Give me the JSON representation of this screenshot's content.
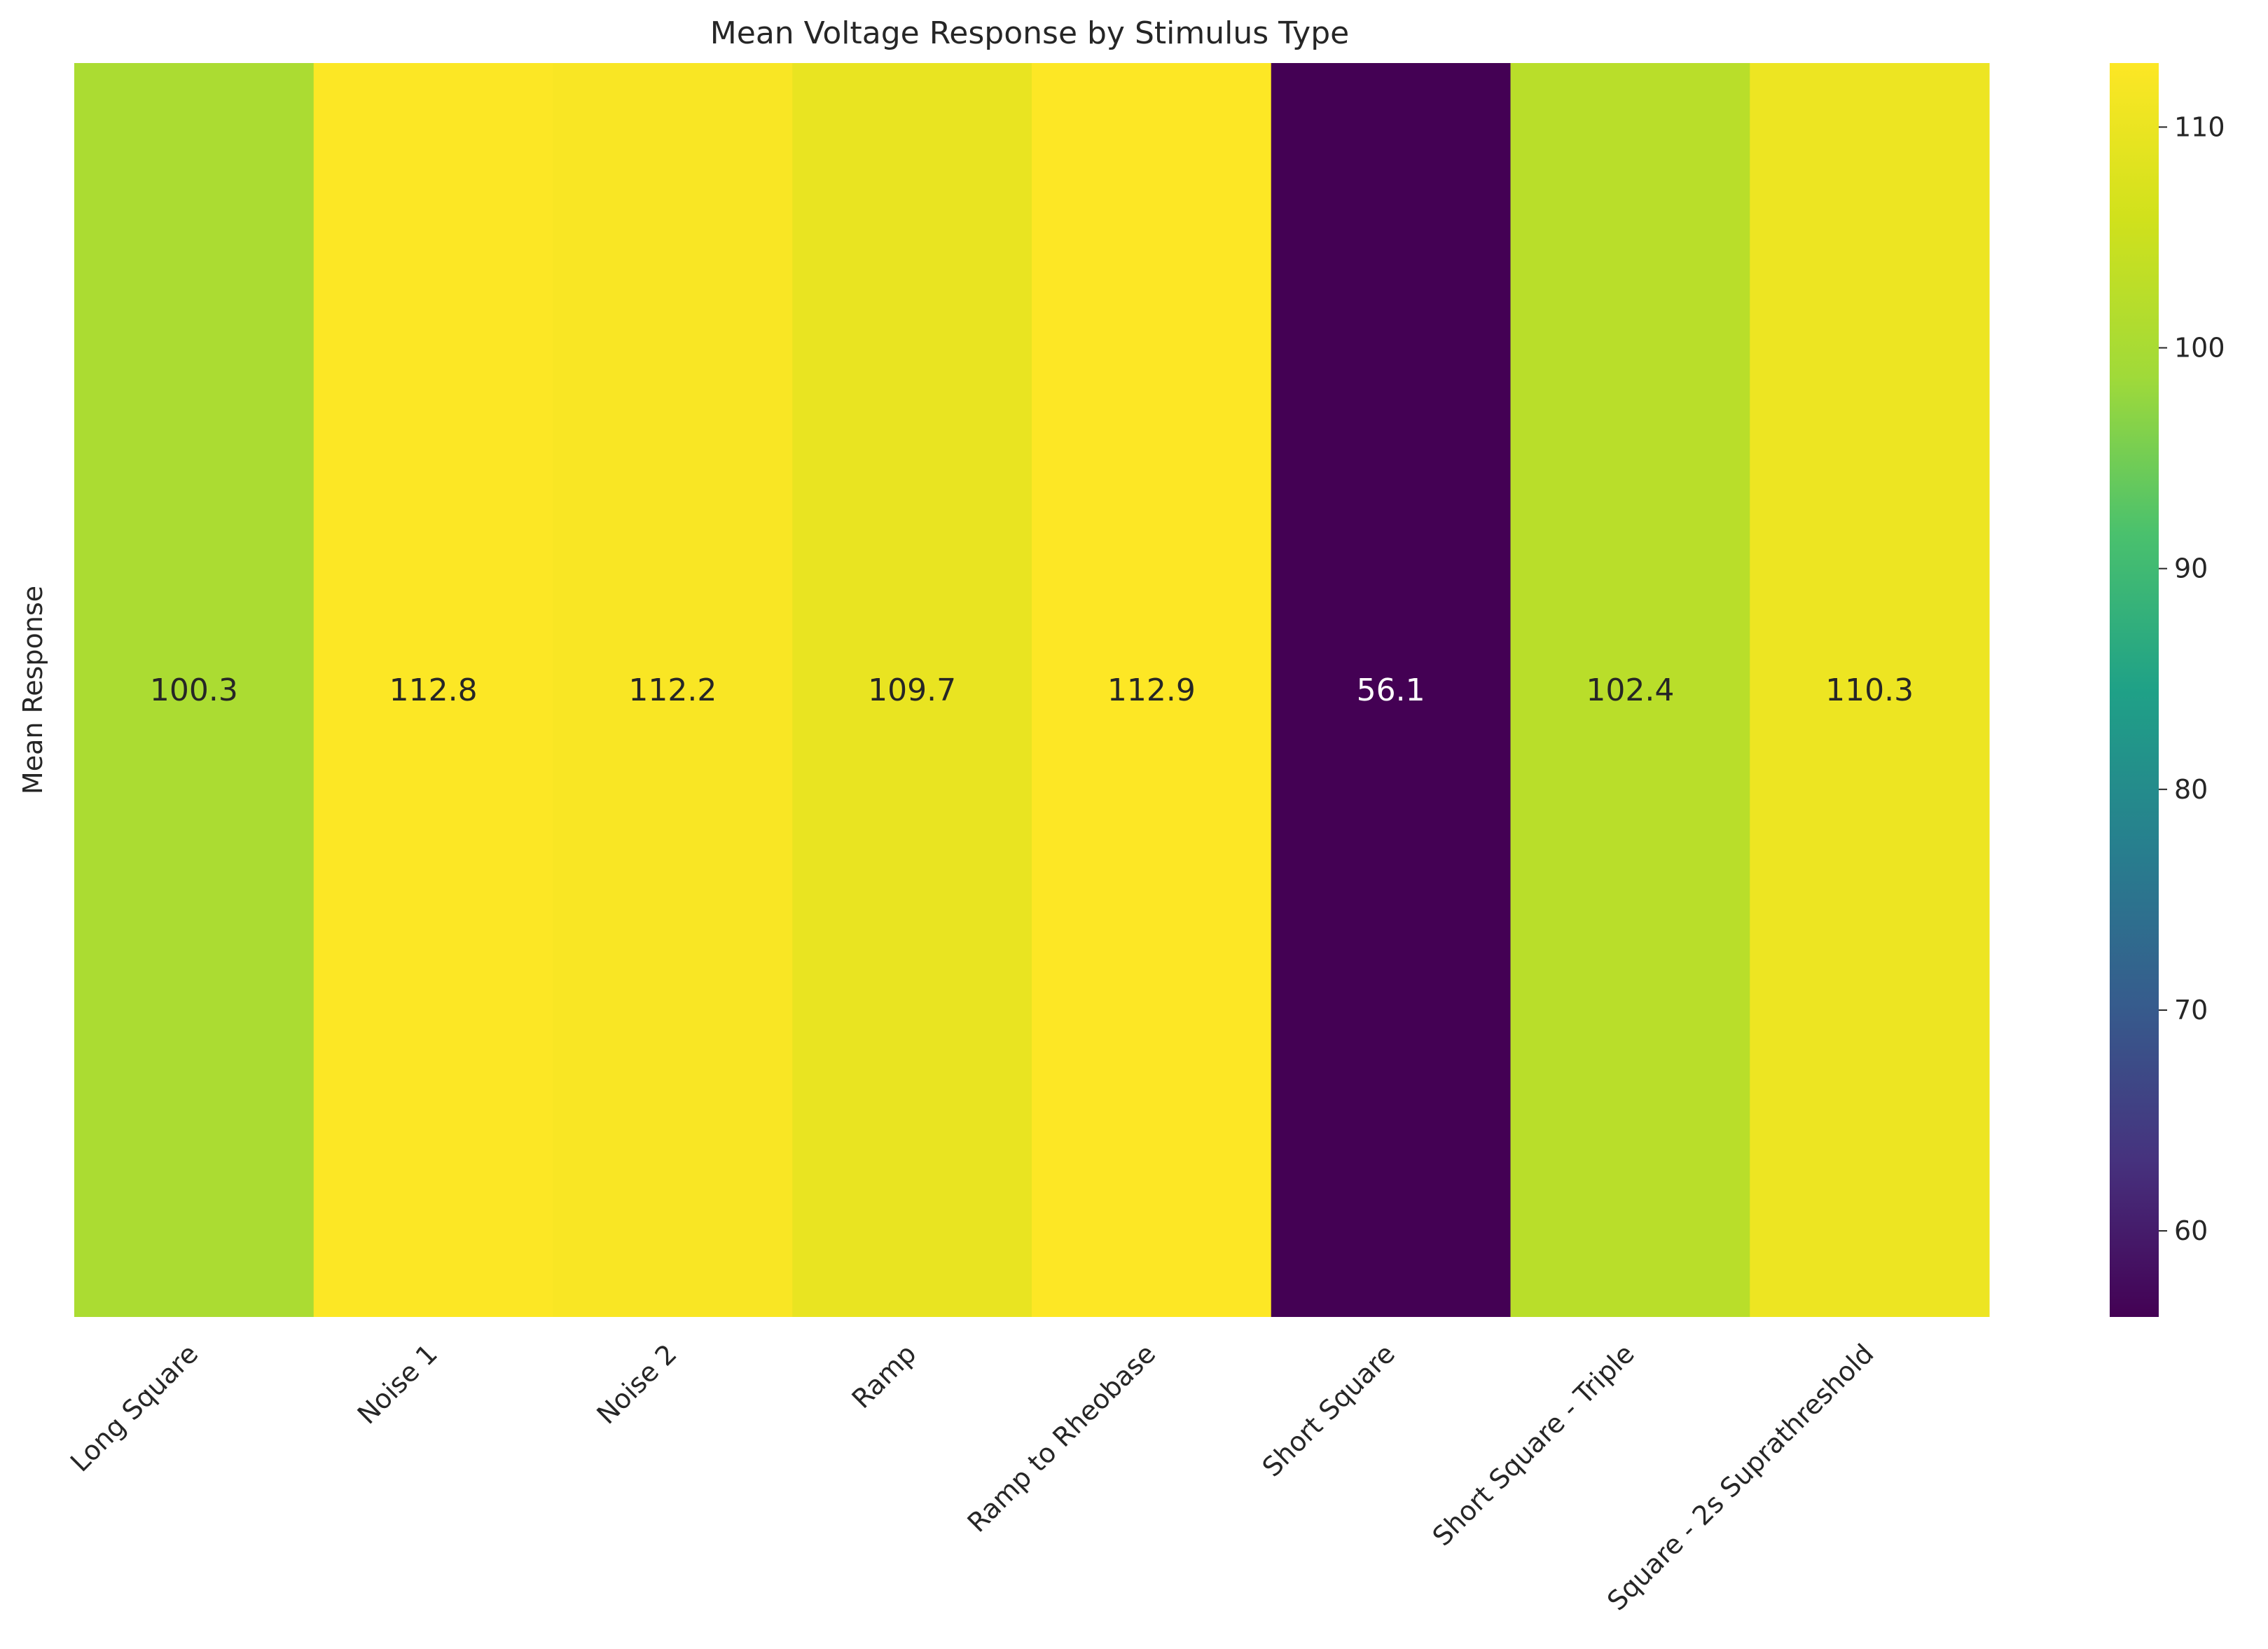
{
  "chart_data": {
    "type": "heatmap",
    "title": "Mean Voltage Response by Stimulus Type",
    "xlabel": "",
    "ylabel": "Mean Response",
    "categories": [
      "Long Square",
      "Noise 1",
      "Noise 2",
      "Ramp",
      "Ramp to Rheobase",
      "Short Square",
      "Short Square - Triple",
      "Square - 2s Suprathreshold"
    ],
    "values": [
      100.3,
      112.8,
      112.2,
      109.7,
      112.9,
      56.1,
      102.4,
      110.3
    ],
    "value_labels": [
      "100.3",
      "112.8",
      "112.2",
      "109.7",
      "112.9",
      "56.1",
      "102.4",
      "110.3"
    ],
    "colormap": "viridis",
    "colorbar": {
      "min": 56.1,
      "max": 112.9,
      "ticks": [
        60,
        70,
        80,
        90,
        100,
        110
      ],
      "tick_labels": [
        "60",
        "70",
        "80",
        "90",
        "100",
        "110"
      ]
    },
    "grid": false,
    "legend": "colorbar-right"
  }
}
